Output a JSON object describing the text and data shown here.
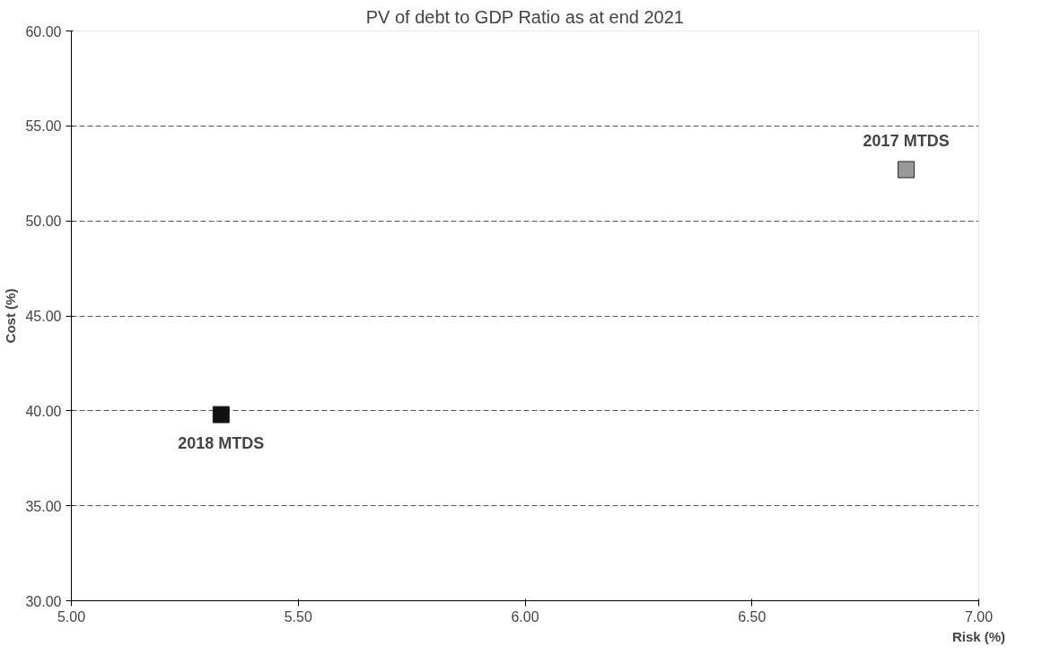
{
  "chart_data": {
    "type": "scatter",
    "title": "PV of debt to GDP Ratio as at end 2021",
    "xlabel": "Risk (%)",
    "ylabel": "Cost (%)",
    "series": [
      {
        "name": "2018 MTDS",
        "color": "#111111",
        "x": [
          5.33
        ],
        "values": [
          39.8
        ]
      },
      {
        "name": "2017 MTDS",
        "color": "#999999",
        "x": [
          6.84
        ],
        "values": [
          52.7
        ]
      }
    ],
    "xlim": [
      5.0,
      7.0
    ],
    "xticks": [
      {
        "value": 5.0,
        "label": "5.00"
      },
      {
        "value": 5.5,
        "label": "5.50"
      },
      {
        "value": 6.0,
        "label": "6.00"
      },
      {
        "value": 6.5,
        "label": "6.50"
      },
      {
        "value": 7.0,
        "label": "7.00"
      }
    ],
    "ylim": [
      30.0,
      60.0
    ],
    "yticks": [
      {
        "value": 30,
        "label": "30.00"
      },
      {
        "value": 35,
        "label": "35.00"
      },
      {
        "value": 40,
        "label": "40.00"
      },
      {
        "value": 45,
        "label": "45.00"
      },
      {
        "value": 50,
        "label": "50.00"
      },
      {
        "value": 55,
        "label": "55.00"
      },
      {
        "value": 60,
        "label": "60.00"
      }
    ],
    "grid": "y",
    "marker": "square"
  }
}
